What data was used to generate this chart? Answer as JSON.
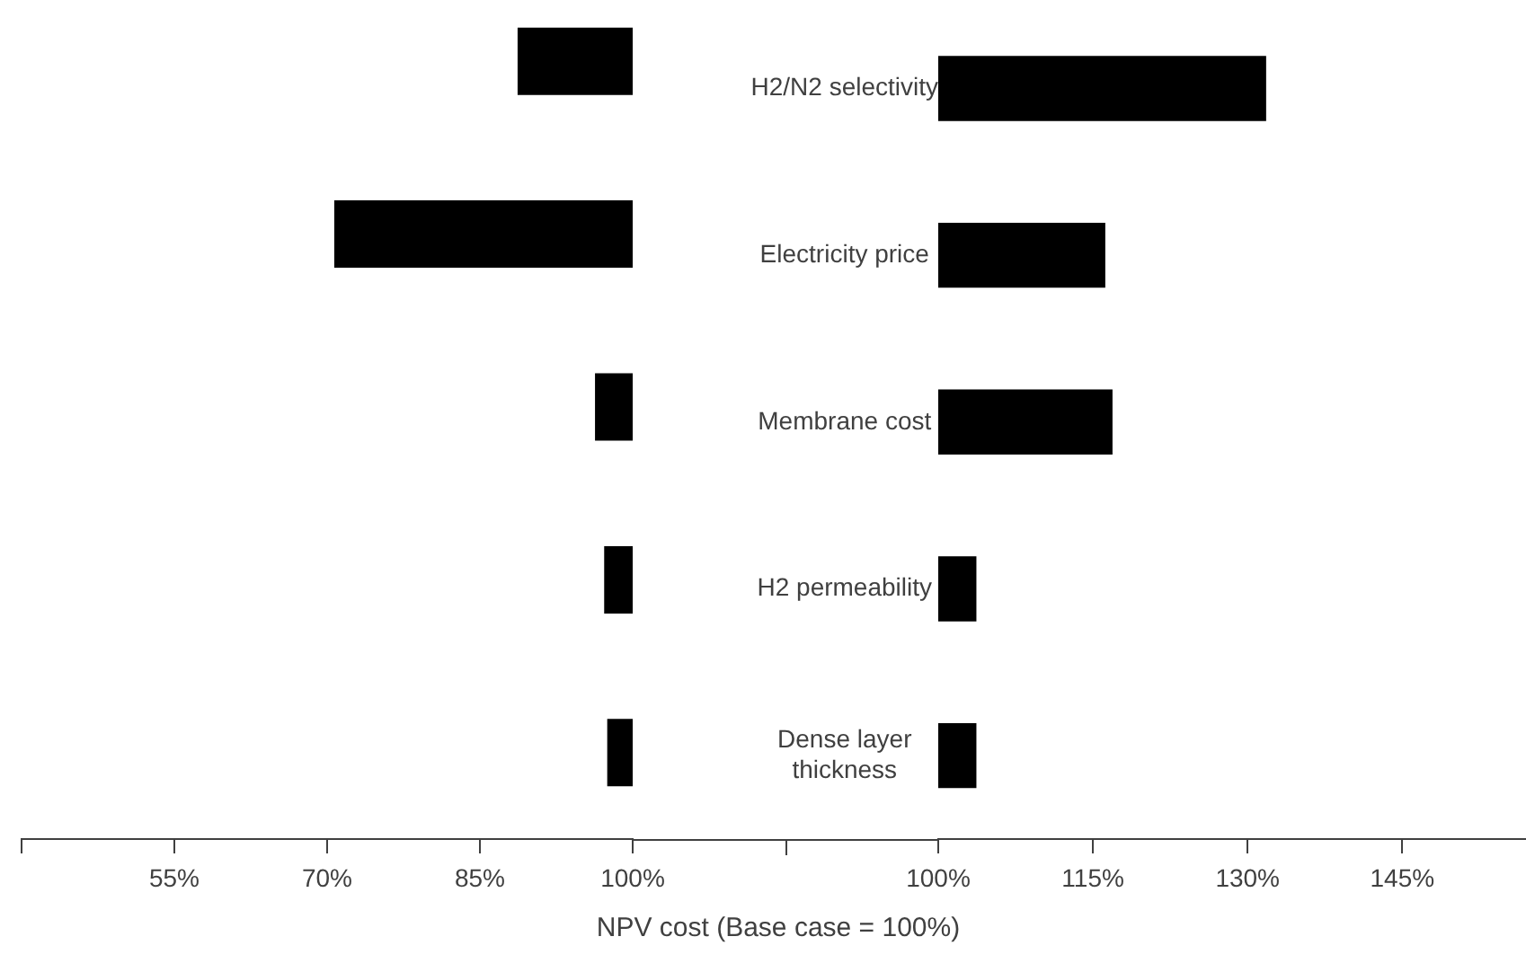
{
  "chart_data": [
    {
      "type": "bar",
      "orientation": "horizontal",
      "categories": [
        null,
        null,
        null,
        null,
        null
      ],
      "base": [
        88.7,
        70.7,
        96.3,
        97.2,
        97.5
      ],
      "values": [
        11.3,
        29.3,
        3.7,
        2.8,
        2.5
      ],
      "color": "#000000",
      "xlim": [
        40,
        100
      ],
      "xticks": [
        {
          "value": 40,
          "label": null
        },
        {
          "value": 55,
          "label": "55%"
        },
        {
          "value": 70,
          "label": "70%"
        },
        {
          "value": 85,
          "label": "85%"
        },
        {
          "value": 100,
          "label": "100%"
        }
      ],
      "tick_labels": "x",
      "grid": false,
      "legend": false
    },
    {
      "type": "bar",
      "orientation": "horizontal",
      "categories": [
        "H2/N2 selectivity",
        "Electricity price",
        "Membrane cost",
        "H2 permeability",
        "Dense layer thickness"
      ],
      "base": [
        100,
        100,
        100,
        100,
        100
      ],
      "values": [
        31.8,
        16.2,
        16.9,
        3.7,
        3.7
      ],
      "color": "#000000",
      "xlim": [
        100,
        157
      ],
      "xticks": [
        {
          "value": 100,
          "label": "100%"
        },
        {
          "value": 115,
          "label": "115%"
        },
        {
          "value": 130,
          "label": "130%"
        },
        {
          "value": 145,
          "label": "145%"
        }
      ],
      "xlabel": "NPV cost (Base case = 100%)",
      "grid": false,
      "legend": false
    }
  ]
}
